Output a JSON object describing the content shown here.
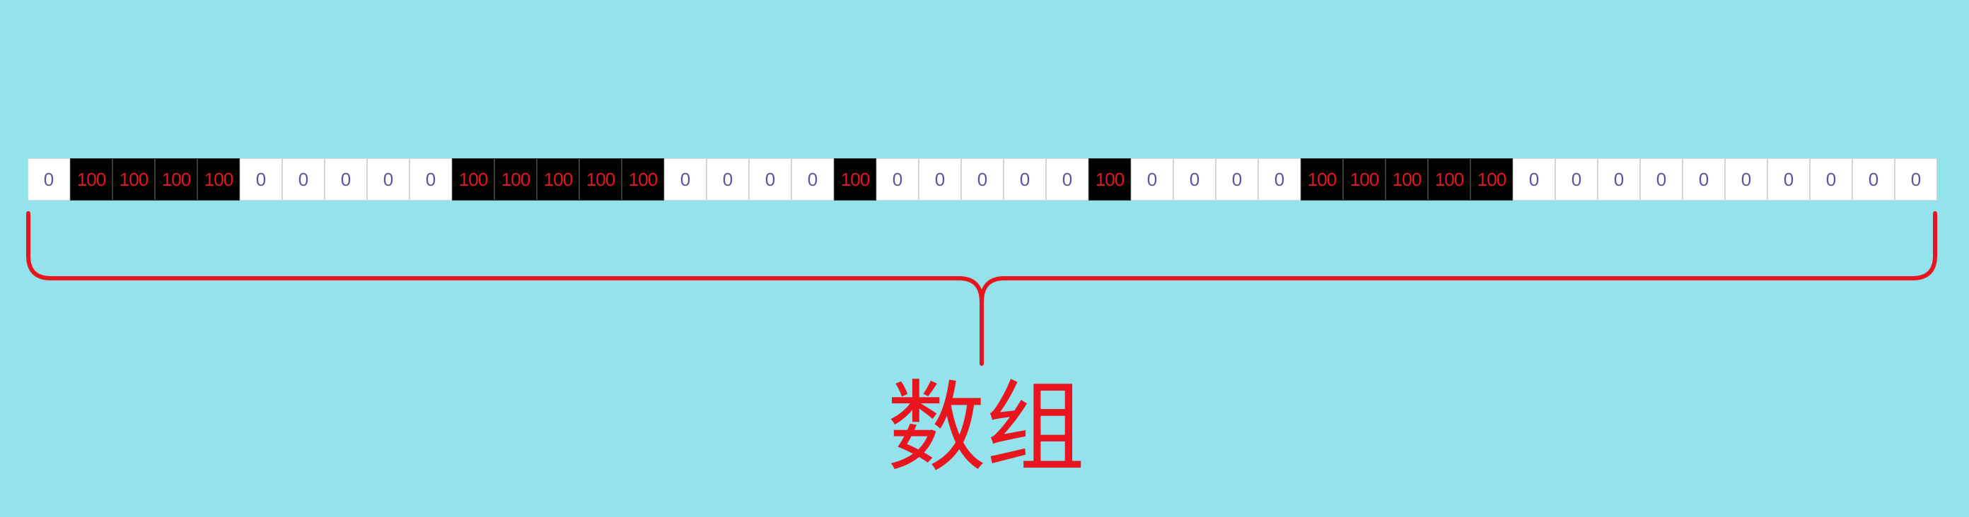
{
  "array": {
    "cells": [
      0,
      100,
      100,
      100,
      100,
      0,
      0,
      0,
      0,
      0,
      100,
      100,
      100,
      100,
      100,
      0,
      0,
      0,
      0,
      100,
      0,
      0,
      0,
      0,
      0,
      100,
      0,
      0,
      0,
      0,
      100,
      100,
      100,
      100,
      100,
      0,
      0,
      0,
      0,
      0,
      0,
      0,
      0,
      0,
      0
    ]
  },
  "label": "数组",
  "colors": {
    "background": "#94E3EC",
    "cell_text": "#5B55A8",
    "highlight_fill": "#000000",
    "highlight_text": "#E8141E",
    "brace": "#E8141E",
    "label": "#E8141E"
  }
}
